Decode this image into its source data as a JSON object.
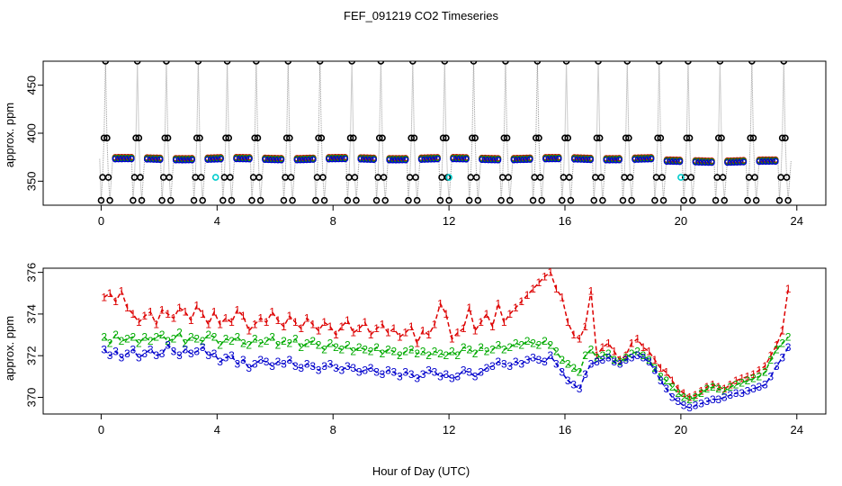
{
  "chart_data": {
    "type": "multi-panel",
    "title": "FEF_091219  CO2 Timeseries",
    "xlabel": "Hour of Day (UTC)",
    "xlim": [
      -2,
      25
    ],
    "xticks": [
      0,
      4,
      8,
      12,
      16,
      20,
      24
    ],
    "panels": [
      {
        "name": "raw",
        "type": "scatter",
        "ylabel": "approx. ppm",
        "ylim": [
          325,
          475
        ],
        "yticks": [
          350,
          400,
          450
        ],
        "colors": {
          "cal": "#000000",
          "s1": "#cc0000",
          "s2": "#00aa00",
          "s3": "#0000cc",
          "ref": "#00cccc"
        },
        "cal_periods": [
          0.0,
          1.1,
          2.1,
          3.2,
          4.2,
          5.2,
          6.3,
          7.4,
          8.5,
          9.5,
          10.6,
          11.7,
          12.7,
          13.8,
          14.9,
          15.9,
          17.0,
          18.0,
          19.1,
          20.1,
          21.2,
          22.3,
          23.4
        ],
        "cal_levels": [
          330,
          354,
          395,
          475,
          395,
          354,
          330
        ],
        "ref_points": [
          [
            3.95,
            354
          ],
          [
            12.0,
            354
          ],
          [
            20.0,
            354
          ]
        ]
      },
      {
        "name": "levels",
        "type": "line",
        "ylabel": "approx. ppm",
        "ylim": [
          369.2,
          376.2
        ],
        "yticks": [
          370,
          372,
          374,
          376
        ],
        "series": [
          {
            "name": "1",
            "color": "#dd0000",
            "x": [
              0.1,
              0.3,
              0.5,
              0.7,
              0.9,
              1.1,
              1.3,
              1.5,
              1.7,
              1.9,
              2.1,
              2.3,
              2.5,
              2.7,
              2.9,
              3.1,
              3.3,
              3.5,
              3.7,
              3.9,
              4.1,
              4.3,
              4.5,
              4.7,
              4.9,
              5.1,
              5.3,
              5.5,
              5.7,
              5.9,
              6.1,
              6.3,
              6.5,
              6.7,
              6.9,
              7.1,
              7.3,
              7.5,
              7.7,
              7.9,
              8.1,
              8.3,
              8.5,
              8.7,
              8.9,
              9.1,
              9.3,
              9.5,
              9.7,
              9.9,
              10.1,
              10.3,
              10.5,
              10.7,
              10.9,
              11.1,
              11.3,
              11.5,
              11.7,
              11.9,
              12.1,
              12.3,
              12.5,
              12.7,
              12.9,
              13.1,
              13.3,
              13.5,
              13.7,
              13.9,
              14.1,
              14.3,
              14.5,
              14.7,
              14.9,
              15.1,
              15.3,
              15.5,
              15.7,
              15.9,
              16.1,
              16.3,
              16.5,
              16.7,
              16.9,
              17.1,
              17.3,
              17.5,
              17.7,
              17.9,
              18.1,
              18.3,
              18.5,
              18.7,
              18.9,
              19.1,
              19.3,
              19.5,
              19.7,
              19.9,
              20.1,
              20.3,
              20.5,
              20.7,
              20.9,
              21.1,
              21.3,
              21.5,
              21.7,
              21.9,
              22.1,
              22.3,
              22.5,
              22.7,
              22.9,
              23.1,
              23.3,
              23.5,
              23.7
            ],
            "values": [
              374.8,
              375.0,
              374.6,
              375.1,
              374.3,
              374.0,
              373.6,
              373.9,
              374.1,
              373.5,
              374.2,
              374.0,
              373.8,
              374.3,
              374.1,
              373.7,
              374.4,
              374.0,
              373.5,
              374.1,
              373.5,
              373.8,
              373.6,
              374.2,
              373.9,
              373.2,
              373.5,
              373.8,
              373.6,
              374.1,
              373.7,
              373.4,
              373.9,
              373.6,
              373.3,
              373.8,
              373.5,
              373.2,
              373.6,
              373.4,
              373.0,
              373.4,
              373.7,
              373.1,
              373.3,
              373.6,
              373.0,
              373.3,
              373.5,
              373.1,
              373.3,
              372.9,
              373.1,
              373.4,
              372.6,
              373.2,
              373.0,
              373.5,
              374.5,
              374.0,
              372.8,
              373.1,
              373.3,
              374.3,
              373.2,
              373.6,
              374.0,
              373.4,
              374.5,
              373.6,
              374.0,
              374.3,
              374.6,
              374.9,
              375.2,
              375.5,
              375.8,
              376.0,
              375.2,
              374.8,
              373.6,
              373.0,
              372.8,
              373.4,
              375.1,
              372.0,
              372.4,
              372.6,
              372.2,
              371.8,
              372.0,
              372.6,
              372.8,
              372.4,
              372.2,
              371.8,
              371.4,
              371.2,
              370.8,
              370.4,
              370.2,
              370.0,
              370.1,
              370.3,
              370.5,
              370.6,
              370.5,
              370.4,
              370.6,
              370.8,
              370.9,
              371.0,
              371.1,
              371.3,
              371.5,
              372.0,
              372.5,
              373.2,
              375.2
            ]
          },
          {
            "name": "2",
            "color": "#00aa00",
            "x": [
              0.1,
              0.3,
              0.5,
              0.7,
              0.9,
              1.1,
              1.3,
              1.5,
              1.7,
              1.9,
              2.1,
              2.3,
              2.5,
              2.7,
              2.9,
              3.1,
              3.3,
              3.5,
              3.7,
              3.9,
              4.1,
              4.3,
              4.5,
              4.7,
              4.9,
              5.1,
              5.3,
              5.5,
              5.7,
              5.9,
              6.1,
              6.3,
              6.5,
              6.7,
              6.9,
              7.1,
              7.3,
              7.5,
              7.7,
              7.9,
              8.1,
              8.3,
              8.5,
              8.7,
              8.9,
              9.1,
              9.3,
              9.5,
              9.7,
              9.9,
              10.1,
              10.3,
              10.5,
              10.7,
              10.9,
              11.1,
              11.3,
              11.5,
              11.7,
              11.9,
              12.1,
              12.3,
              12.5,
              12.7,
              12.9,
              13.1,
              13.3,
              13.5,
              13.7,
              13.9,
              14.1,
              14.3,
              14.5,
              14.7,
              14.9,
              15.1,
              15.3,
              15.5,
              15.7,
              15.9,
              16.1,
              16.3,
              16.5,
              16.7,
              16.9,
              17.1,
              17.3,
              17.5,
              17.7,
              17.9,
              18.1,
              18.3,
              18.5,
              18.7,
              18.9,
              19.1,
              19.3,
              19.5,
              19.7,
              19.9,
              20.1,
              20.3,
              20.5,
              20.7,
              20.9,
              21.1,
              21.3,
              21.5,
              21.7,
              21.9,
              22.1,
              22.3,
              22.5,
              22.7,
              22.9,
              23.1,
              23.3,
              23.5,
              23.7
            ],
            "values": [
              372.9,
              372.6,
              373.0,
              372.7,
              372.8,
              372.9,
              372.6,
              372.9,
              372.7,
              372.9,
              373.0,
              372.7,
              372.8,
              373.1,
              372.6,
              372.9,
              372.8,
              372.7,
              373.0,
              372.9,
              372.5,
              372.8,
              372.7,
              372.9,
              372.6,
              372.5,
              372.8,
              372.6,
              372.7,
              372.9,
              372.5,
              372.7,
              372.6,
              372.8,
              372.4,
              372.6,
              372.7,
              372.5,
              372.3,
              372.6,
              372.4,
              372.3,
              372.5,
              372.2,
              372.4,
              372.3,
              372.2,
              372.4,
              372.1,
              372.3,
              372.2,
              372.0,
              372.2,
              372.3,
              372.1,
              372.2,
              372.0,
              372.2,
              372.1,
              372.0,
              372.2,
              372.0,
              372.4,
              372.3,
              372.1,
              372.4,
              372.2,
              372.3,
              372.5,
              372.3,
              372.4,
              372.6,
              372.5,
              372.7,
              372.6,
              372.5,
              372.7,
              372.5,
              372.2,
              371.8,
              371.6,
              371.4,
              371.2,
              372.0,
              372.3,
              371.9,
              372.0,
              372.1,
              371.8,
              371.7,
              371.9,
              372.1,
              372.2,
              372.0,
              371.8,
              371.4,
              371.0,
              370.8,
              370.5,
              370.2,
              370.0,
              369.9,
              370.0,
              370.2,
              370.4,
              370.5,
              370.4,
              370.3,
              370.5,
              370.6,
              370.7,
              370.8,
              370.9,
              371.0,
              371.2,
              371.8,
              372.3,
              372.6,
              372.9
            ]
          },
          {
            "name": "3",
            "color": "#0000cc",
            "x": [
              0.1,
              0.3,
              0.5,
              0.7,
              0.9,
              1.1,
              1.3,
              1.5,
              1.7,
              1.9,
              2.1,
              2.3,
              2.5,
              2.7,
              2.9,
              3.1,
              3.3,
              3.5,
              3.7,
              3.9,
              4.1,
              4.3,
              4.5,
              4.7,
              4.9,
              5.1,
              5.3,
              5.5,
              5.7,
              5.9,
              6.1,
              6.3,
              6.5,
              6.7,
              6.9,
              7.1,
              7.3,
              7.5,
              7.7,
              7.9,
              8.1,
              8.3,
              8.5,
              8.7,
              8.9,
              9.1,
              9.3,
              9.5,
              9.7,
              9.9,
              10.1,
              10.3,
              10.5,
              10.7,
              10.9,
              11.1,
              11.3,
              11.5,
              11.7,
              11.9,
              12.1,
              12.3,
              12.5,
              12.7,
              12.9,
              13.1,
              13.3,
              13.5,
              13.7,
              13.9,
              14.1,
              14.3,
              14.5,
              14.7,
              14.9,
              15.1,
              15.3,
              15.5,
              15.7,
              15.9,
              16.1,
              16.3,
              16.5,
              16.7,
              16.9,
              17.1,
              17.3,
              17.5,
              17.7,
              17.9,
              18.1,
              18.3,
              18.5,
              18.7,
              18.9,
              19.1,
              19.3,
              19.5,
              19.7,
              19.9,
              20.1,
              20.3,
              20.5,
              20.7,
              20.9,
              21.1,
              21.3,
              21.5,
              21.7,
              21.9,
              22.1,
              22.3,
              22.5,
              22.7,
              22.9,
              23.1,
              23.3,
              23.5,
              23.7
            ],
            "values": [
              372.3,
              372.0,
              372.2,
              371.9,
              372.1,
              372.3,
              371.9,
              372.1,
              372.3,
              372.0,
              372.1,
              372.5,
              372.2,
              372.0,
              372.3,
              372.1,
              372.2,
              372.4,
              372.0,
              372.1,
              371.7,
              371.9,
              372.0,
              371.6,
              371.8,
              371.4,
              371.6,
              371.8,
              371.7,
              371.5,
              371.7,
              371.6,
              371.8,
              371.5,
              371.4,
              371.6,
              371.5,
              371.3,
              371.5,
              371.6,
              371.4,
              371.3,
              371.5,
              371.4,
              371.2,
              371.3,
              371.4,
              371.2,
              371.1,
              371.3,
              371.2,
              371.0,
              371.2,
              371.1,
              370.9,
              371.1,
              371.3,
              371.2,
              371.0,
              371.1,
              370.9,
              371.0,
              371.3,
              371.2,
              371.0,
              371.2,
              371.4,
              371.5,
              371.7,
              371.6,
              371.5,
              371.7,
              371.6,
              371.8,
              371.9,
              371.8,
              371.7,
              372.0,
              371.6,
              371.2,
              370.8,
              370.6,
              370.4,
              371.1,
              371.6,
              371.7,
              371.8,
              371.9,
              371.7,
              371.6,
              371.8,
              371.9,
              372.0,
              371.9,
              371.7,
              371.3,
              370.8,
              370.4,
              370.0,
              369.8,
              369.6,
              369.5,
              369.6,
              369.7,
              369.8,
              369.9,
              369.9,
              370.0,
              370.1,
              370.2,
              370.2,
              370.3,
              370.4,
              370.5,
              370.6,
              371.0,
              371.5,
              371.9,
              372.4
            ]
          }
        ]
      }
    ]
  }
}
